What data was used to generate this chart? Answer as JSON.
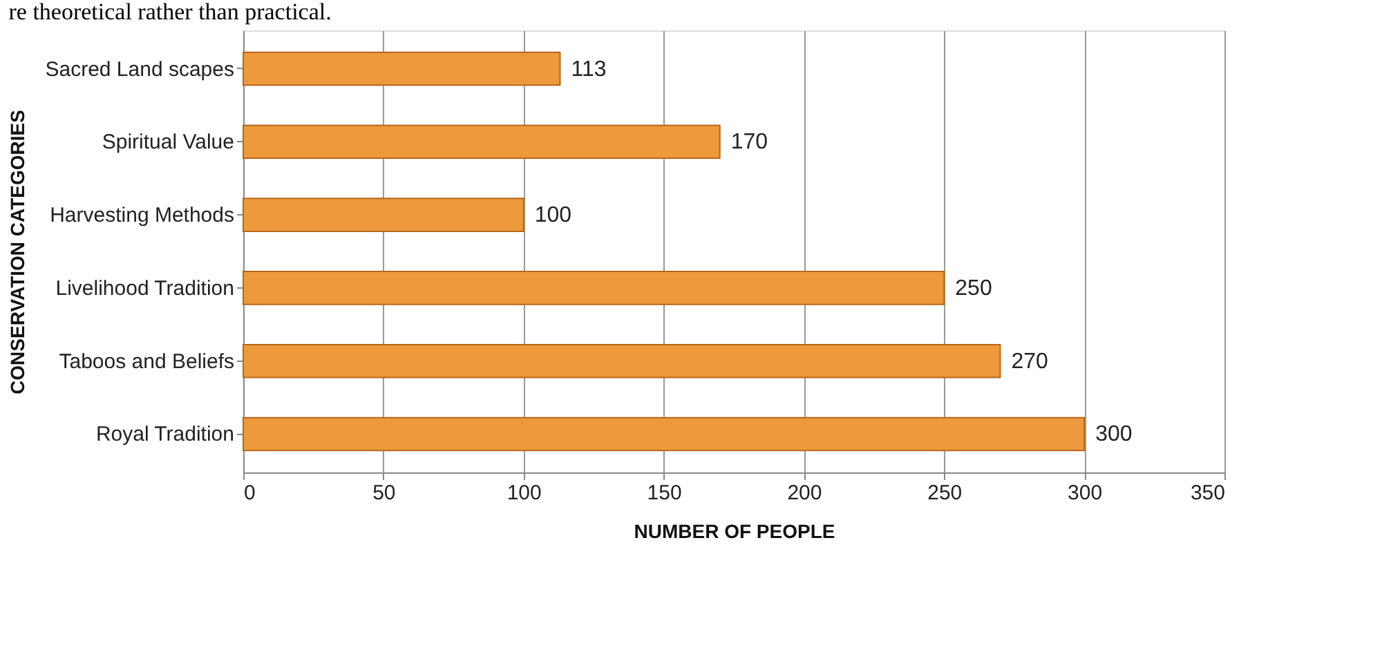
{
  "chart_data": {
    "type": "bar",
    "orientation": "horizontal",
    "categories": [
      "Sacred Land scapes",
      "Spiritual Value",
      "Harvesting Methods",
      "Livelihood Tradition",
      "Taboos and Beliefs",
      "Royal Tradition"
    ],
    "values": [
      113,
      170,
      100,
      250,
      270,
      300
    ],
    "color": "#ec9a3c",
    "xlim": [
      0,
      350
    ],
    "xticks": [
      0,
      50,
      100,
      150,
      200,
      250,
      300,
      350
    ],
    "xlabel": "NUMBER OF PEOPLE",
    "ylabel": "CONSERVATION CATEGORIES",
    "data_labels": true,
    "grid": "x",
    "annotations": [
      "re theoretical rather than practical."
    ]
  }
}
